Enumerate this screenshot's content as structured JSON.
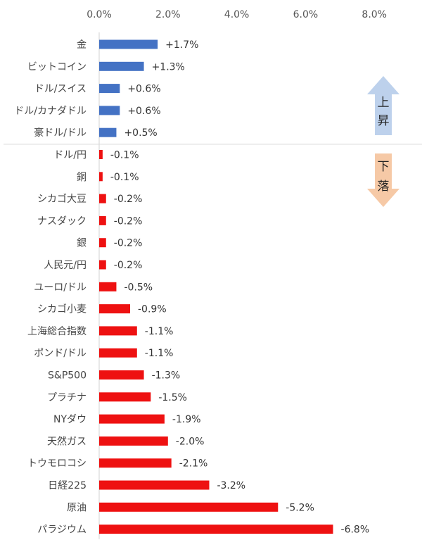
{
  "chart_data": {
    "type": "bar",
    "orientation": "horizontal",
    "title": "",
    "xlabel": "",
    "ylabel": "",
    "xlim": [
      0,
      8
    ],
    "x_ticks": [
      "0.0%",
      "2.0%",
      "4.0%",
      "6.0%",
      "8.0%"
    ],
    "x_tick_values": [
      0,
      2,
      4,
      6,
      8
    ],
    "x_axis_position": "top",
    "grid": false,
    "categories": [
      "金",
      "ビットコイン",
      "ドル/スイス",
      "ドル/カナダドル",
      "豪ドル/ドル",
      "ドル/円",
      "銅",
      "シカゴ大豆",
      "ナスダック",
      "銀",
      "人民元/円",
      "ユーロ/ドル",
      "シカゴ小麦",
      "上海総合指数",
      "ポンド/ドル",
      "S&P500",
      "プラチナ",
      "NYダウ",
      "天然ガス",
      "トウモロコシ",
      "日経225",
      "原油",
      "パラジウム"
    ],
    "values": [
      1.7,
      1.3,
      0.6,
      0.6,
      0.5,
      -0.1,
      -0.1,
      -0.2,
      -0.2,
      -0.2,
      -0.2,
      -0.5,
      -0.9,
      -1.1,
      -1.1,
      -1.3,
      -1.5,
      -1.9,
      -2.0,
      -2.1,
      -3.2,
      -5.2,
      -6.8
    ],
    "value_labels": [
      "+1.7%",
      "+1.3%",
      "+0.6%",
      "+0.6%",
      "+0.5%",
      "-0.1%",
      "-0.1%",
      "-0.2%",
      "-0.2%",
      "-0.2%",
      "-0.2%",
      "-0.5%",
      "-0.9%",
      "-1.1%",
      "-1.1%",
      "-1.3%",
      "-1.5%",
      "-1.9%",
      "-2.0%",
      "-2.1%",
      "-3.2%",
      "-5.2%",
      "-6.8%"
    ],
    "bar_length": "absolute value",
    "colors": {
      "up": "#4472C4",
      "down": "#EE1111"
    },
    "arrows": {
      "up": {
        "label_chars": [
          "上",
          "昇"
        ],
        "color": "#BDD1EC"
      },
      "down": {
        "label_chars": [
          "下",
          "落"
        ],
        "color": "#F6C9A6"
      }
    }
  }
}
